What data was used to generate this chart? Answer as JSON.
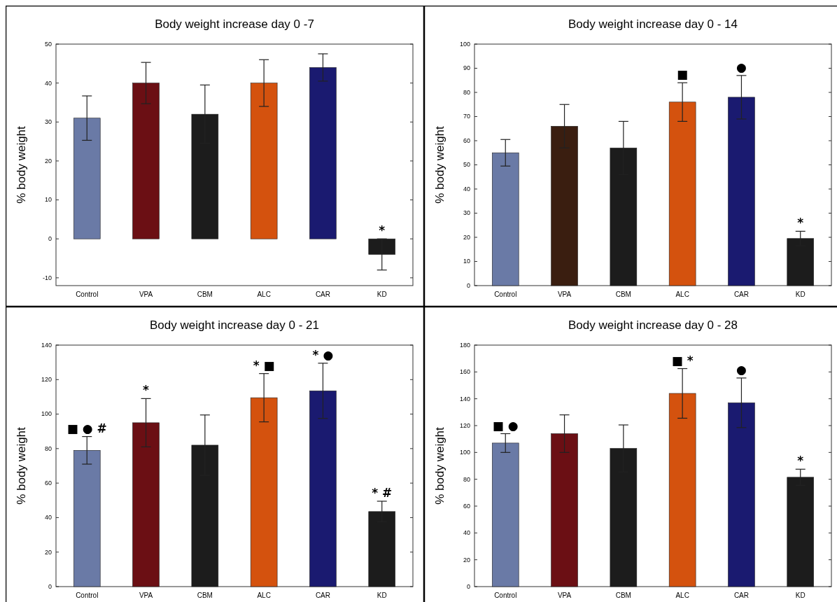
{
  "chart_data": [
    {
      "type": "bar",
      "title": "Body weight increase day 0 -7",
      "ylabel": "% body weight",
      "categories": [
        "Control",
        "VPA",
        "CBM",
        "ALC",
        "CAR",
        "KD"
      ],
      "values": [
        31,
        40,
        32,
        40,
        44,
        -4
      ],
      "errors": [
        5.7,
        5.3,
        7.5,
        6,
        3.5,
        4
      ],
      "colors": [
        "#6a7aa6",
        "#6b0f14",
        "#1c1c1c",
        "#d4520e",
        "#1a1a70",
        "#1c1c1c"
      ],
      "ylim": [
        -12,
        50
      ],
      "yticks": [
        -10,
        0,
        10,
        20,
        30,
        40,
        50
      ],
      "annotations": [
        {
          "text": "*",
          "x": "KD",
          "y": 0
        }
      ]
    },
    {
      "type": "bar",
      "title": "Body weight increase day 0 - 14",
      "ylabel": "% body weight",
      "categories": [
        "Control",
        "VPA",
        "CBM",
        "ALC",
        "CAR",
        "KD"
      ],
      "values": [
        55,
        66,
        57,
        76,
        78,
        19.5
      ],
      "errors": [
        5.5,
        9,
        11,
        8,
        9,
        3
      ],
      "colors": [
        "#6a7aa6",
        "#3a1e10",
        "#1c1c1c",
        "#d4520e",
        "#1a1a70",
        "#1c1c1c"
      ],
      "ylim": [
        0,
        100
      ],
      "yticks": [
        0,
        10,
        20,
        30,
        40,
        50,
        60,
        70,
        80,
        90,
        100
      ],
      "annotations": [
        {
          "text": "■",
          "x": "ALC",
          "y": 84
        },
        {
          "text": "●",
          "x": "CAR",
          "y": 87
        },
        {
          "text": "*",
          "x": "KD",
          "y": 22.5
        }
      ]
    },
    {
      "type": "bar",
      "title": "Body weight increase day 0 - 21",
      "ylabel": "% body weight",
      "categories": [
        "Control",
        "VPA",
        "CBM",
        "ALC",
        "CAR",
        "KD"
      ],
      "values": [
        79,
        95,
        82,
        109.5,
        113.5,
        43.5
      ],
      "errors": [
        8,
        14,
        17.5,
        14,
        16,
        6
      ],
      "colors": [
        "#6a7aa6",
        "#6b0f14",
        "#1c1c1c",
        "#d4520e",
        "#1a1a70",
        "#1c1c1c"
      ],
      "ylim": [
        0,
        140
      ],
      "yticks": [
        0,
        20,
        40,
        60,
        80,
        100,
        120,
        140
      ],
      "annotations": [
        {
          "text": "■ ● #",
          "x": "Control",
          "y": 87
        },
        {
          "text": "*",
          "x": "VPA",
          "y": 109
        },
        {
          "text": "* ■",
          "x": "ALC",
          "y": 123.5
        },
        {
          "text": "* ●",
          "x": "CAR",
          "y": 129.5
        },
        {
          "text": "* #",
          "x": "KD",
          "y": 49.5
        }
      ]
    },
    {
      "type": "bar",
      "title": "Body weight increase day 0 - 28",
      "ylabel": "% body weight",
      "categories": [
        "Control",
        "VPA",
        "CBM",
        "ALC",
        "CAR",
        "KD"
      ],
      "values": [
        107,
        114,
        103,
        144,
        137,
        81.5
      ],
      "errors": [
        7,
        14,
        17.5,
        18.5,
        18.5,
        6
      ],
      "colors": [
        "#6a7aa6",
        "#6b0f14",
        "#1c1c1c",
        "#d4520e",
        "#1a1a70",
        "#1c1c1c"
      ],
      "ylim": [
        0,
        180
      ],
      "yticks": [
        0,
        20,
        40,
        60,
        80,
        100,
        120,
        140,
        160,
        180
      ],
      "annotations": [
        {
          "text": "■ ●",
          "x": "Control",
          "y": 114
        },
        {
          "text": "■ *",
          "x": "ALC",
          "y": 162.5
        },
        {
          "text": "●",
          "x": "CAR",
          "y": 155.5
        },
        {
          "text": "*",
          "x": "KD",
          "y": 87.5
        }
      ]
    }
  ]
}
